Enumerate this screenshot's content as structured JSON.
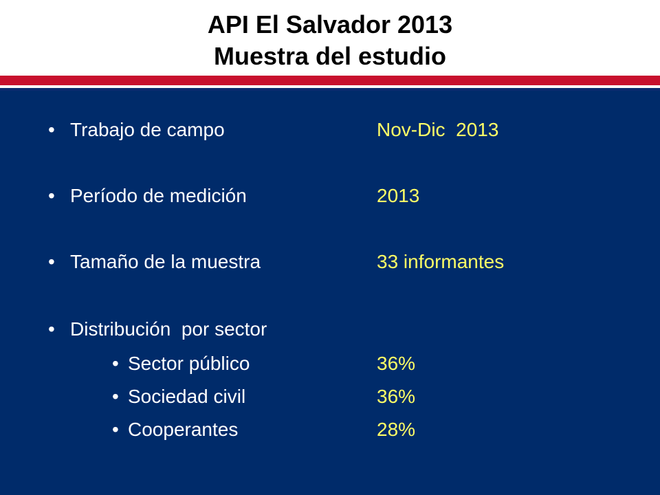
{
  "slide": {
    "title_line1": "API El Salvador 2013",
    "title_line2": "Muestra del estudio",
    "colors": {
      "header_bg": "#ffffff",
      "accent_red": "#c8102e",
      "body_bg": "#002b6a",
      "label_text": "#ffffff",
      "value_text": "#ffff66"
    },
    "bullet_glyph": "•",
    "items": [
      {
        "label": "Trabajo de campo",
        "value": "Nov-Dic  2013"
      },
      {
        "label": "Período de medición",
        "value": "2013"
      },
      {
        "label": "Tamaño de la muestra",
        "value": "33 informantes"
      },
      {
        "label": "Distribución  por sector",
        "value": ""
      }
    ],
    "sub_items": [
      {
        "label": "Sector público",
        "value": "36%"
      },
      {
        "label": "Sociedad civil",
        "value": "36%"
      },
      {
        "label": "Cooperantes",
        "value": "28%"
      }
    ]
  }
}
